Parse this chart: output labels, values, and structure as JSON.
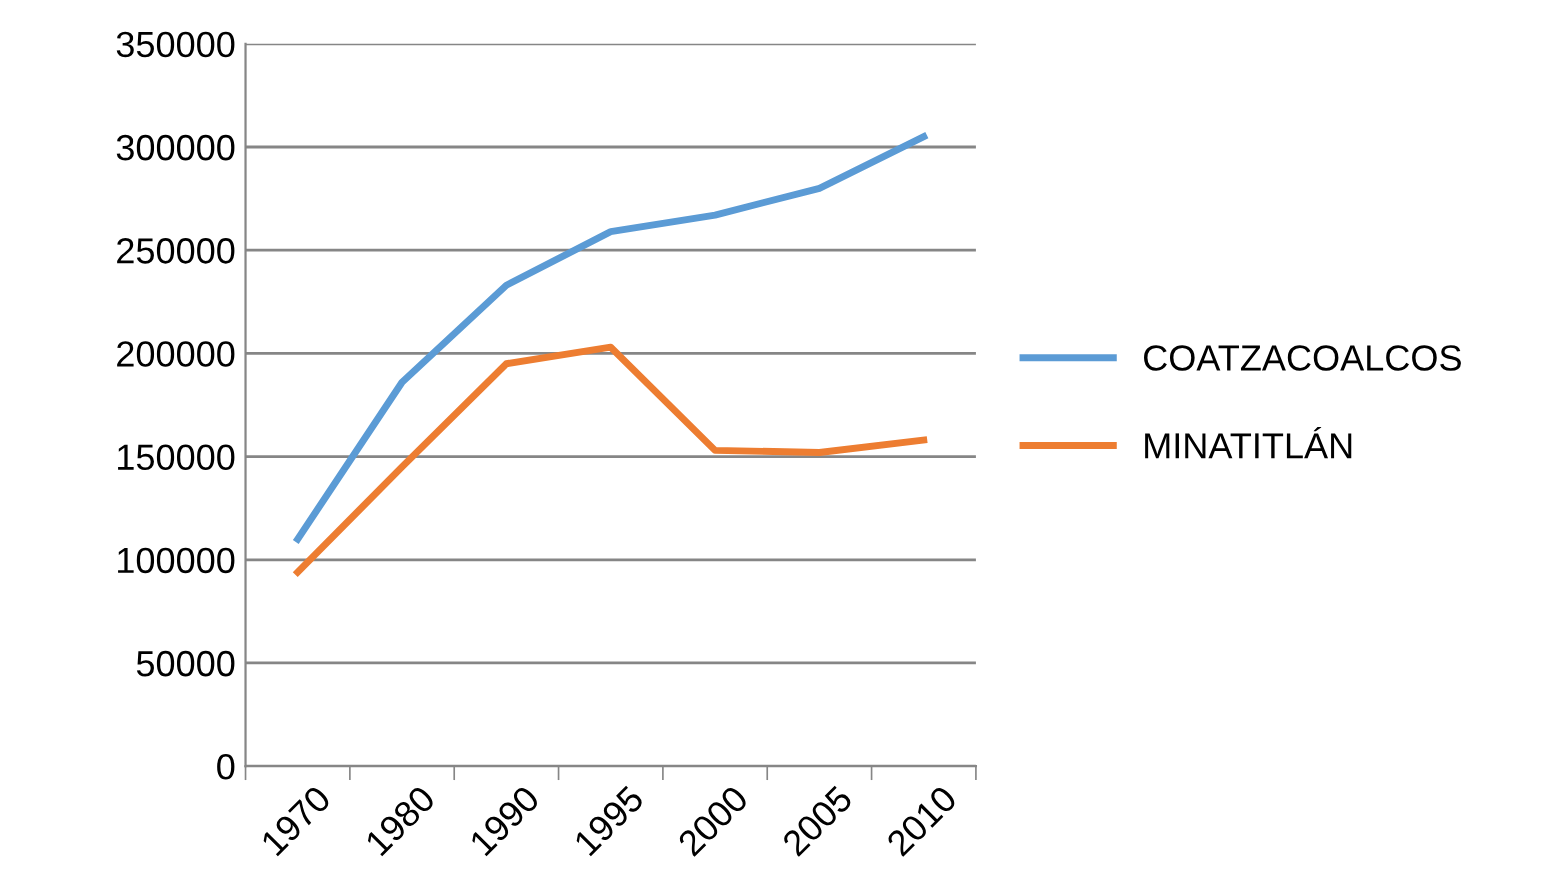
{
  "chart_data": {
    "type": "line",
    "categories": [
      "1970",
      "1980",
      "1990",
      "1995",
      "2000",
      "2005",
      "2010"
    ],
    "series": [
      {
        "name": "COATZACOALCOS",
        "color": "#5b9bd5",
        "values": [
          110000,
          186000,
          233000,
          259000,
          267000,
          280000,
          305000
        ]
      },
      {
        "name": "MINATITLÁN",
        "color": "#ed7d31",
        "values": [
          94000,
          145000,
          195000,
          203000,
          153000,
          152000,
          158000
        ]
      }
    ],
    "ylim": [
      0,
      350000
    ],
    "yticks": [
      0,
      50000,
      100000,
      150000,
      200000,
      250000,
      300000,
      350000
    ],
    "grid": "y",
    "legend": "right",
    "marker": "none",
    "line_style": "solid"
  }
}
